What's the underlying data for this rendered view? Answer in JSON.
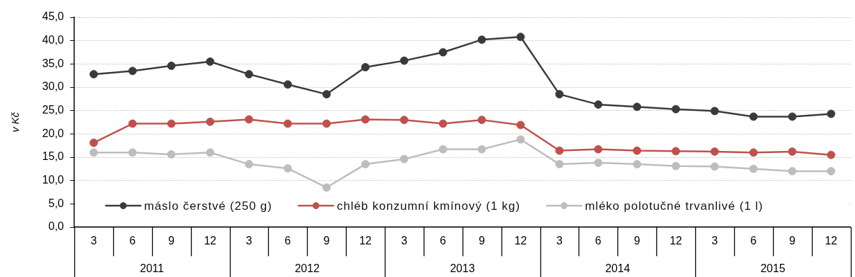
{
  "chart_data": {
    "type": "line",
    "ylabel": "v Kč",
    "categories": [
      "3",
      "6",
      "9",
      "12",
      "3",
      "6",
      "9",
      "12",
      "3",
      "6",
      "9",
      "12",
      "3",
      "6",
      "9",
      "12",
      "3",
      "6",
      "9",
      "12"
    ],
    "annotations": [
      "2011",
      "2012",
      "2013",
      "2014",
      "2015"
    ],
    "series": [
      {
        "name": "máslo čerstvé (250 g)",
        "color": "#3a3a3a",
        "values": [
          32.8,
          33.5,
          34.6,
          35.5,
          32.8,
          30.6,
          28.5,
          34.3,
          35.7,
          37.5,
          40.2,
          40.8,
          28.5,
          26.3,
          25.8,
          25.3,
          24.9,
          23.7,
          23.7,
          24.3
        ]
      },
      {
        "name": "chléb konzumní kmínový (1 kg)",
        "color": "#c0504d",
        "values": [
          18.1,
          22.2,
          22.2,
          22.6,
          23.1,
          22.2,
          22.2,
          23.1,
          23.0,
          22.2,
          23.0,
          21.9,
          16.4,
          16.7,
          16.4,
          16.3,
          16.2,
          16.0,
          16.2,
          15.5
        ]
      },
      {
        "name": "mléko polotučné trvanlivé (1 l)",
        "color": "#bdbdbd",
        "values": [
          16.0,
          16.0,
          15.6,
          16.0,
          13.5,
          12.6,
          8.5,
          13.5,
          14.6,
          16.7,
          16.7,
          18.8,
          13.5,
          13.8,
          13.5,
          13.1,
          13.0,
          12.5,
          12.0,
          12.0
        ]
      }
    ],
    "ylim": [
      0,
      45
    ],
    "yticks": [
      {
        "value": 0,
        "label": "0,0"
      },
      {
        "value": 5,
        "label": "5,0"
      },
      {
        "value": 10,
        "label": "10,0"
      },
      {
        "value": 15,
        "label": "15,0"
      },
      {
        "value": 20,
        "label": "20,0"
      },
      {
        "value": 25,
        "label": "25,0"
      },
      {
        "value": 30,
        "label": "30,0"
      },
      {
        "value": 35,
        "label": "35,0"
      },
      {
        "value": 40,
        "label": "40,0"
      },
      {
        "value": 45,
        "label": "45,0"
      }
    ],
    "grid": "y",
    "legend": "bottom",
    "marker": "circle",
    "line_style": "solid"
  }
}
